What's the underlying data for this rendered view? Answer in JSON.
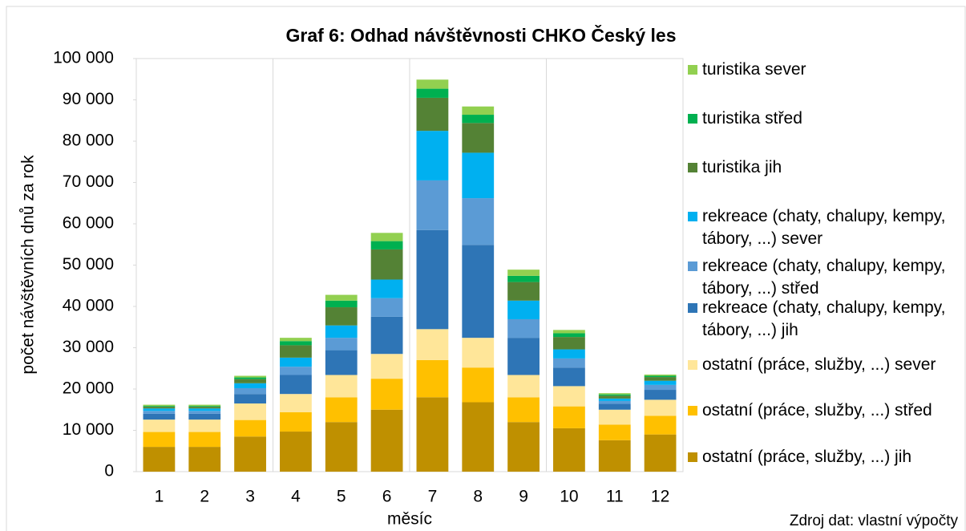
{
  "chart_data": {
    "type": "stacked_bar",
    "title": "Graf 6: Odhad návštěvnosti CHKO Český les",
    "x_label": "měsíc",
    "y_label": "počet návštěvních dnů za rok",
    "source": "Zdroj dat: vlastní výpočty",
    "categories": [
      "1",
      "2",
      "3",
      "4",
      "5",
      "6",
      "7",
      "8",
      "9",
      "10",
      "11",
      "12"
    ],
    "ylim": [
      0,
      100000
    ],
    "yticks": [
      0,
      {
        "value": 10000,
        "label": "10 000"
      },
      {
        "value": 20000,
        "label": "20 000"
      },
      {
        "value": 30000,
        "label": "30 000"
      },
      {
        "value": 40000,
        "label": "40 000"
      },
      {
        "value": 50000,
        "label": "50 000"
      },
      {
        "value": 60000,
        "label": "60 000"
      },
      {
        "value": 70000,
        "label": "70 000"
      },
      {
        "value": 80000,
        "label": "80 000"
      },
      {
        "value": 90000,
        "label": "90 000"
      },
      {
        "value": 100000,
        "label": "100 000"
      }
    ],
    "series": [
      {
        "name": "ostatní (práce, služby, ...) jih",
        "color": "#bf9000",
        "values": [
          6000,
          6000,
          8500,
          9700,
          12000,
          15000,
          18000,
          16800,
          12000,
          10500,
          7600,
          9000
        ]
      },
      {
        "name": "ostatní (práce, služby, ...) střed",
        "color": "#ffc000",
        "values": [
          3600,
          3600,
          4000,
          4700,
          6000,
          7500,
          9000,
          8400,
          6000,
          5300,
          3800,
          4500
        ]
      },
      {
        "name": "ostatní (práce, služby, ...) sever",
        "color": "#ffe699",
        "values": [
          3000,
          3000,
          4000,
          4400,
          5400,
          6000,
          7500,
          7200,
          5400,
          4900,
          3600,
          3900
        ]
      },
      {
        "name": "rekreace (chaty, chalupy, kempy, tábory, ...) jih",
        "color": "#2e75b6",
        "values": [
          1400,
          1400,
          2300,
          4600,
          6000,
          9000,
          24000,
          22500,
          9000,
          4500,
          1400,
          2400
        ]
      },
      {
        "name": "rekreace (chaty, chalupy, kempy, tábory, ...) střed",
        "color": "#5b9bd5",
        "values": [
          700,
          700,
          1400,
          2000,
          3000,
          4500,
          12000,
          11300,
          4500,
          2200,
          700,
          1200
        ]
      },
      {
        "name": "rekreace (chaty, chalupy, kempy, tábory, ...) sever",
        "color": "#00b0f0",
        "values": [
          600,
          600,
          1200,
          2200,
          3000,
          4500,
          12000,
          11000,
          4500,
          2200,
          600,
          1000
        ]
      },
      {
        "name": "turistika jih",
        "color": "#548235",
        "values": [
          400,
          400,
          1000,
          3000,
          4400,
          7300,
          8000,
          7200,
          4500,
          3000,
          700,
          900
        ]
      },
      {
        "name": "turistika střed",
        "color": "#00b050",
        "values": [
          200,
          200,
          400,
          1000,
          1600,
          2000,
          2200,
          2000,
          1500,
          900,
          300,
          300
        ]
      },
      {
        "name": "turistika sever",
        "color": "#92d050",
        "values": [
          300,
          300,
          400,
          800,
          1400,
          2000,
          2200,
          2000,
          1500,
          800,
          300,
          300
        ]
      }
    ]
  }
}
